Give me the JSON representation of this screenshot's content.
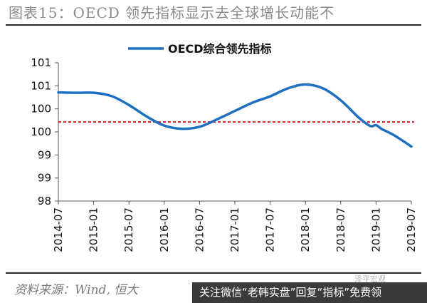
{
  "header": {
    "title": "图表15：OECD 领先指标显示去全球增长动能不"
  },
  "footer": {
    "source": "资料来源：Wind, 恒大",
    "banner": "关注微信“老韩实盘”回复“指标”免费领",
    "watermark": "泽平宏观"
  },
  "colors": {
    "series": "#1f6fc0",
    "reference": "#d02020",
    "axis": "#555555"
  },
  "chart_data": {
    "type": "line",
    "title": "",
    "xlabel": "",
    "ylabel": "",
    "y_tick_labels": [
      "98",
      "99",
      "99",
      "100",
      "100",
      "101",
      "101"
    ],
    "ylim": [
      98,
      101.5
    ],
    "x_tick_labels": [
      "2014-07",
      "2015-01",
      "2015-07",
      "2016-01",
      "2016-07",
      "2017-01",
      "2017-07",
      "2018-01",
      "2018-07",
      "2019-01",
      "2019-07"
    ],
    "xlim": [
      "2014-07",
      "2019-07"
    ],
    "reference_line": {
      "y": 100,
      "style": "dashed"
    },
    "legend": {
      "position": "top-center"
    },
    "series": [
      {
        "name": "OECD综合领先指标",
        "x": [
          "2014-07",
          "2014-10",
          "2015-01",
          "2015-04",
          "2015-07",
          "2015-10",
          "2016-01",
          "2016-04",
          "2016-07",
          "2016-10",
          "2017-01",
          "2017-04",
          "2017-07",
          "2017-10",
          "2018-01",
          "2018-04",
          "2018-07",
          "2018-10",
          "2018-12",
          "2019-01",
          "2019-02",
          "2019-04",
          "2019-07"
        ],
        "values": [
          100.75,
          100.74,
          100.74,
          100.66,
          100.43,
          100.14,
          99.91,
          99.83,
          99.88,
          100.07,
          100.28,
          100.49,
          100.65,
          100.85,
          100.95,
          100.85,
          100.55,
          100.12,
          99.9,
          99.92,
          99.82,
          99.67,
          99.38
        ]
      }
    ],
    "grid": false
  }
}
